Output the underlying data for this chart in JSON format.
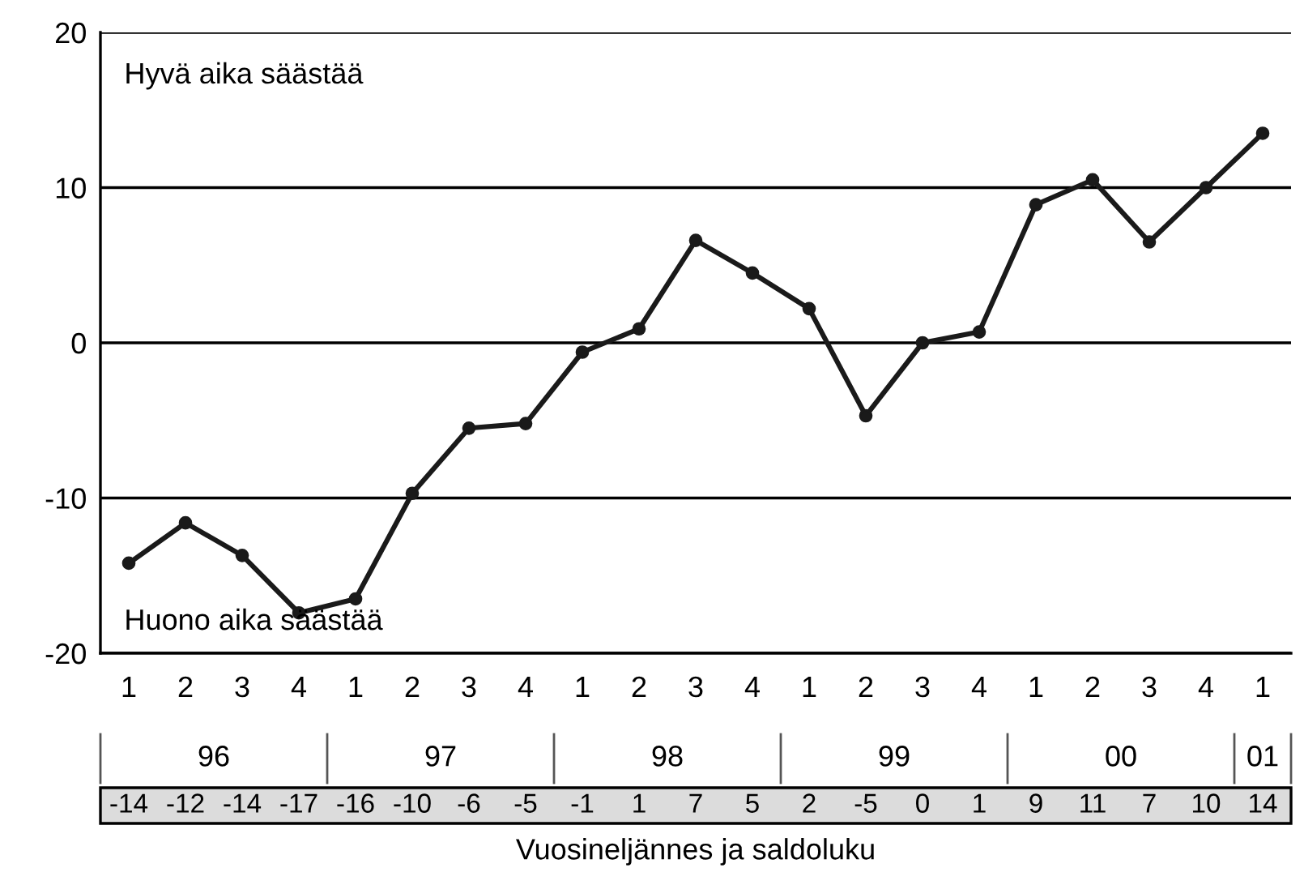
{
  "chart_data": {
    "type": "line",
    "xlabel": "Vuosineljännes ja saldoluku",
    "categories": [
      "1",
      "2",
      "3",
      "4",
      "1",
      "2",
      "3",
      "4",
      "1",
      "2",
      "3",
      "4",
      "1",
      "2",
      "3",
      "4",
      "1",
      "2",
      "3",
      "4",
      "1"
    ],
    "series": [
      {
        "color": "#1a1a1a",
        "values": [
          -14.2,
          -11.6,
          -13.7,
          -17.4,
          -16.5,
          -9.7,
          -5.5,
          -5.2,
          -0.6,
          0.9,
          6.6,
          4.5,
          2.2,
          -4.7,
          0.0,
          0.7,
          8.9,
          10.5,
          6.5,
          10.0,
          13.5
        ],
        "value_labels": [
          "-14",
          "-12",
          "-14",
          "-17",
          "-16",
          "-10",
          "-6",
          "-5",
          "-1",
          "1",
          "7",
          "5",
          "2",
          "-5",
          "0",
          "1",
          "9",
          "11",
          "7",
          "10",
          "14"
        ]
      }
    ],
    "ylim": [
      -20,
      20
    ],
    "yticks": [
      -20,
      -10,
      0,
      10,
      20
    ],
    "grid": "y",
    "marker": "circle",
    "line_style": "solid",
    "annotations": [
      "Hyvä aika säästää",
      "Huono aika säästää",
      "96",
      "97",
      "98",
      "99",
      "00",
      "01"
    ]
  }
}
